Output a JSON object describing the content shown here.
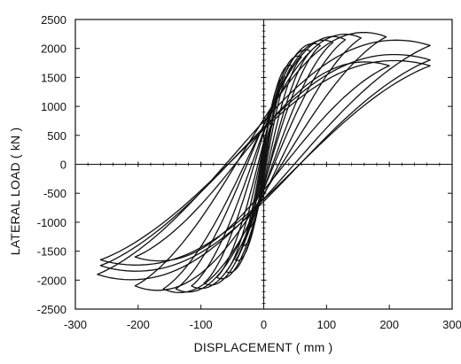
{
  "chart_data": {
    "type": "line",
    "title": "",
    "xlabel": "DISPLACEMENT ( mm )",
    "ylabel": "LATERAL LOAD ( kN )",
    "xlim": [
      -300,
      300
    ],
    "ylim": [
      -2500,
      2500
    ],
    "x_ticks": [
      -300,
      -200,
      -100,
      0,
      100,
      200,
      300
    ],
    "y_ticks": [
      -2500,
      -2000,
      -1500,
      -1000,
      -500,
      0,
      500,
      1000,
      1500,
      2000,
      2500
    ],
    "x_tick_labels": [
      "-300",
      "-200",
      "-100",
      "0",
      "100",
      "200",
      "300"
    ],
    "y_tick_labels": [
      "-2500",
      "-2000",
      "-1500",
      "-1000",
      "-500",
      "0",
      "500",
      "1000",
      "1500",
      "2000",
      "2500"
    ],
    "grid": false,
    "legend": "none",
    "line_color": "#111111",
    "series": [
      {
        "amplitude_pos": 8,
        "amplitude_neg": -8,
        "peak_pos": 300,
        "peak_neg": -300
      },
      {
        "amplitude_pos": 15,
        "amplitude_neg": -15,
        "peak_pos": 700,
        "peak_neg": -650
      },
      {
        "amplitude_pos": 25,
        "amplitude_neg": -25,
        "peak_pos": 1200,
        "peak_neg": -1100
      },
      {
        "amplitude_pos": 35,
        "amplitude_neg": -35,
        "peak_pos": 1500,
        "peak_neg": -1400
      },
      {
        "amplitude_pos": 45,
        "amplitude_neg": -45,
        "peak_pos": 1700,
        "peak_neg": -1650
      },
      {
        "amplitude_pos": 60,
        "amplitude_neg": -60,
        "peak_pos": 1850,
        "peak_neg": -1850
      },
      {
        "amplitude_pos": 75,
        "amplitude_neg": -75,
        "peak_pos": 1950,
        "peak_neg": -1950
      },
      {
        "amplitude_pos": 90,
        "amplitude_neg": -95,
        "peak_pos": 2050,
        "peak_neg": -2050
      },
      {
        "amplitude_pos": 110,
        "amplitude_neg": -115,
        "peak_pos": 2100,
        "peak_neg": -2100
      },
      {
        "amplitude_pos": 130,
        "amplitude_neg": -140,
        "peak_pos": 2150,
        "peak_neg": -2150
      },
      {
        "amplitude_pos": 155,
        "amplitude_neg": -160,
        "peak_pos": 2180,
        "peak_neg": -2150
      },
      {
        "amplitude_pos": 195,
        "amplitude_neg": -205,
        "peak_pos": 2200,
        "peak_neg": -2100
      },
      {
        "amplitude_pos": 200,
        "amplitude_neg": -205,
        "peak_pos": 1700,
        "peak_neg": -1600
      },
      {
        "amplitude_pos": 265,
        "amplitude_neg": -265,
        "peak_pos": 2050,
        "peak_neg": -1900
      },
      {
        "amplitude_pos": 265,
        "amplitude_neg": -260,
        "peak_pos": 1800,
        "peak_neg": -1750
      },
      {
        "amplitude_pos": 265,
        "amplitude_neg": -260,
        "peak_pos": 1700,
        "peak_neg": -1650
      }
    ]
  }
}
